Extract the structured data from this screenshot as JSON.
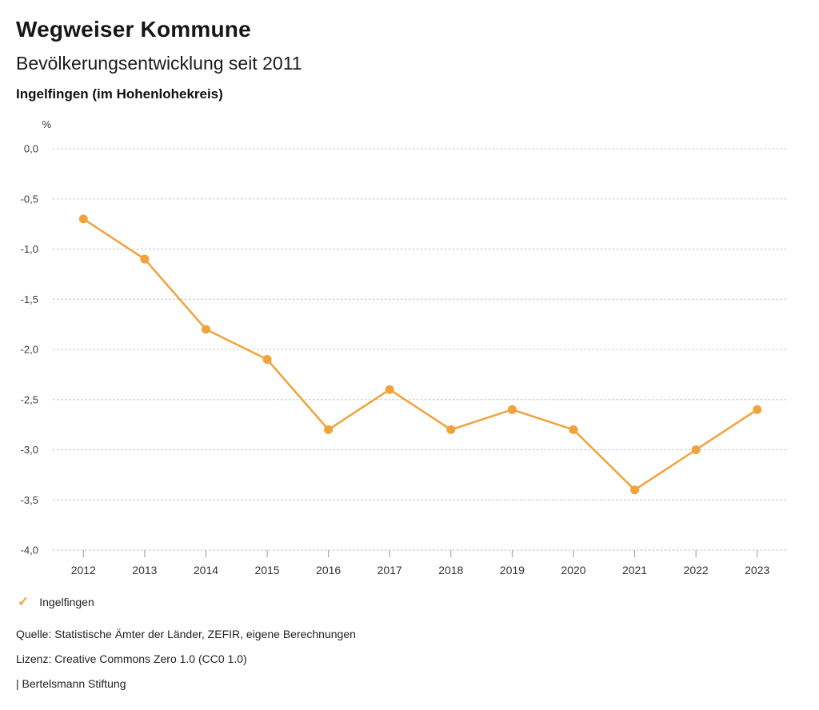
{
  "header": {
    "title": "Wegweiser Kommune",
    "subtitle": "Bevölkerungsentwicklung seit 2011",
    "region": "Ingelfingen (im Hohenlohekreis)"
  },
  "chart_data": {
    "type": "line",
    "title": "Bevölkerungsentwicklung seit 2011",
    "ylabel": "%",
    "xlabel": "",
    "categories": [
      "2012",
      "2013",
      "2014",
      "2015",
      "2016",
      "2017",
      "2018",
      "2019",
      "2020",
      "2021",
      "2022",
      "2023"
    ],
    "series": [
      {
        "name": "Ingelfingen",
        "values": [
          -0.7,
          -1.1,
          -1.8,
          -2.1,
          -2.8,
          -2.4,
          -2.8,
          -2.6,
          -2.8,
          -3.4,
          -3.0,
          -2.6
        ]
      }
    ],
    "ylim": [
      -4.0,
      0.0
    ],
    "yticks": [
      {
        "value": 0.0,
        "label": "0,0"
      },
      {
        "value": -0.5,
        "label": "-0,5"
      },
      {
        "value": -1.0,
        "label": "-1,0"
      },
      {
        "value": -1.5,
        "label": "-1,5"
      },
      {
        "value": -2.0,
        "label": "-2,0"
      },
      {
        "value": -2.5,
        "label": "-2,5"
      },
      {
        "value": -3.0,
        "label": "-3,0"
      },
      {
        "value": -3.5,
        "label": "-3,5"
      },
      {
        "value": -4.0,
        "label": "-4,0"
      }
    ],
    "grid": "horizontal-dotted",
    "legend_position": "bottom-left"
  },
  "legend": {
    "items": [
      {
        "label": "Ingelfingen",
        "marker": "check"
      }
    ]
  },
  "footer": {
    "source": "Quelle: Statistische Ämter der Länder, ZEFIR, eigene Berechnungen",
    "license": "Lizenz: Creative Commons Zero 1.0 (CC0 1.0)",
    "attribution": "| Bertelsmann Stiftung"
  },
  "colors": {
    "accent": "#F0A33C",
    "grid": "#b0b0b0",
    "tick": "#9a9a9a",
    "text": "#3c3c3b"
  }
}
